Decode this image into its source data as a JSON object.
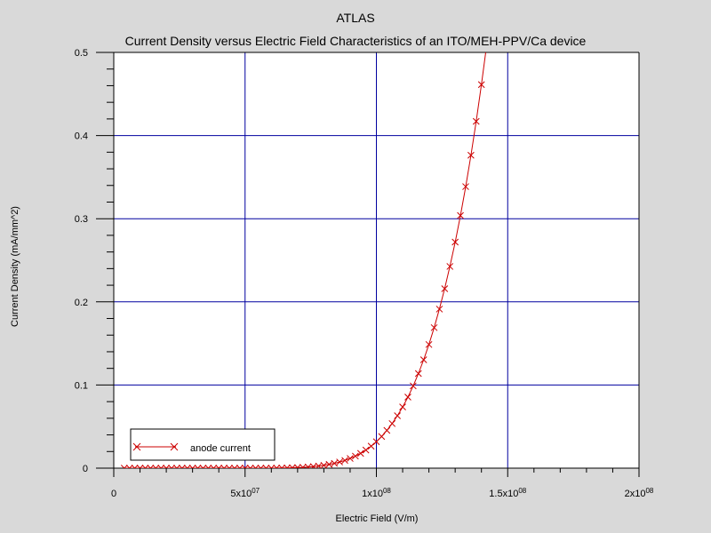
{
  "app_title": "ATLAS",
  "chart_data": {
    "type": "line",
    "title": "Current Density versus Electric Field Characteristics of an ITO/MEH-PPV/Ca device",
    "xlabel": "Electric Field (V/m)",
    "ylabel": "Current Density (mA/mm^2)",
    "xlim": [
      0,
      200000000
    ],
    "ylim": [
      0,
      0.5
    ],
    "grid": true,
    "legend_position": "bottom-left",
    "x_ticks": [
      {
        "value": 0,
        "base": "0",
        "exp": ""
      },
      {
        "value": 50000000,
        "base": "5x10",
        "exp": "07"
      },
      {
        "value": 100000000,
        "base": "1x10",
        "exp": "08"
      },
      {
        "value": 150000000,
        "base": "1.5x10",
        "exp": "08"
      },
      {
        "value": 200000000,
        "base": "2x10",
        "exp": "08"
      }
    ],
    "y_ticks": [
      {
        "value": 0,
        "label": "0"
      },
      {
        "value": 0.1,
        "label": "0.1"
      },
      {
        "value": 0.2,
        "label": "0.2"
      },
      {
        "value": 0.3,
        "label": "0.3"
      },
      {
        "value": 0.4,
        "label": "0.4"
      },
      {
        "value": 0.5,
        "label": "0.5"
      }
    ],
    "series": [
      {
        "name": "anode current",
        "color": "#cc0000",
        "marker": "x",
        "x": [
          4000000,
          6000000,
          8000000,
          10000000,
          12000000,
          14000000,
          16000000,
          18000000,
          20000000,
          22000000,
          24000000,
          26000000,
          28000000,
          30000000,
          32000000,
          34000000,
          36000000,
          38000000,
          40000000,
          42000000,
          44000000,
          46000000,
          48000000,
          50000000,
          52000000,
          54000000,
          56000000,
          58000000,
          60000000,
          62000000,
          64000000,
          66000000,
          68000000,
          70000000,
          72000000,
          74000000,
          76000000,
          78000000,
          80000000,
          82000000,
          84000000,
          86000000,
          88000000,
          90000000,
          92000000,
          94000000,
          96000000,
          98000000,
          100000000,
          102000000,
          104000000,
          106000000,
          108000000,
          110000000,
          112000000,
          114000000,
          116000000,
          118000000,
          120000000,
          122000000,
          124000000,
          126000000,
          128000000,
          130000000,
          132000000,
          134000000,
          136000000,
          138000000,
          140000000,
          142000000,
          144000000
        ],
        "y": [
          0.0,
          0.0,
          0.0,
          0.0,
          0.0,
          0.0,
          0.0,
          0.0,
          0.0,
          0.0,
          0.0,
          0.0,
          0.0,
          0.0,
          0.0,
          0.0,
          0.0,
          0.0,
          0.0,
          0.0,
          0.0,
          0.0,
          0.0,
          0.0,
          0.0,
          0.0,
          0.0,
          0.0,
          0.0,
          0.0001,
          0.0002,
          0.0003,
          0.0005,
          0.0007,
          0.001,
          0.0014,
          0.0019,
          0.0026,
          0.0034,
          0.0045,
          0.0058,
          0.0074,
          0.0093,
          0.0117,
          0.0145,
          0.0178,
          0.0218,
          0.0264,
          0.0318,
          0.0381,
          0.0454,
          0.0536,
          0.063,
          0.0736,
          0.0855,
          0.0989,
          0.1138,
          0.1303,
          0.1487,
          0.169,
          0.1913,
          0.2158,
          0.2426,
          0.2719,
          0.3038,
          0.3386,
          0.3763,
          0.4171,
          0.4613,
          0.5089,
          0.5601
        ]
      }
    ]
  },
  "colors": {
    "background": "#d9d9d9",
    "plot_area": "#ffffff",
    "grid": "#00009f",
    "series": "#cc0000"
  }
}
